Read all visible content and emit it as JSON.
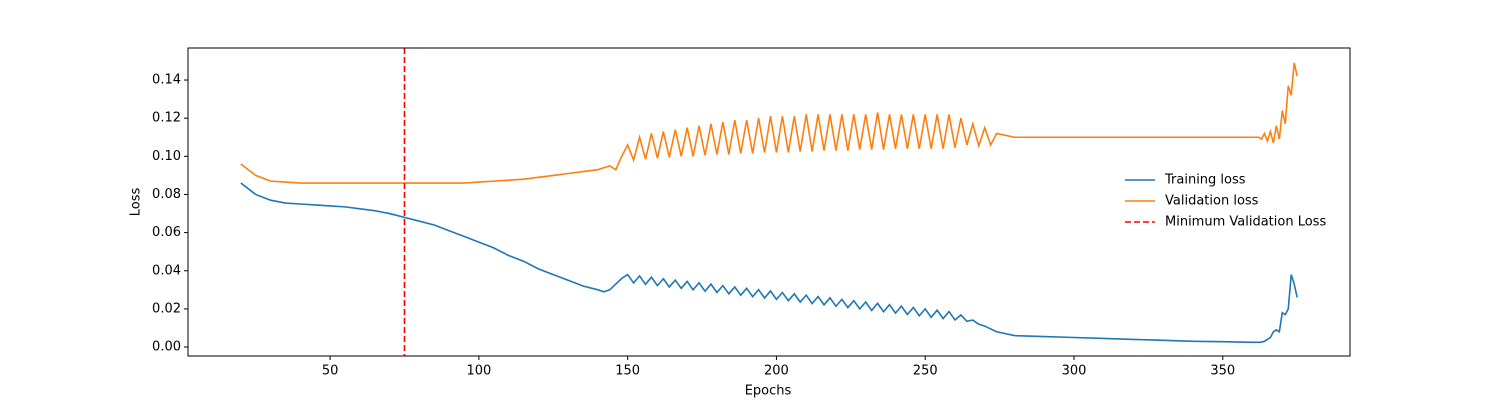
{
  "chart_data": {
    "type": "line",
    "xlabel": "Epochs",
    "ylabel": "Loss",
    "xlim": [
      2.25,
      392.75
    ],
    "ylim": [
      -0.0047,
      0.1568
    ],
    "xticks": [
      50,
      100,
      150,
      200,
      250,
      300,
      350
    ],
    "yticks": [
      {
        "value": 0,
        "label": "0.00"
      },
      {
        "value": 0.02,
        "label": "0.02"
      },
      {
        "value": 0.04,
        "label": "0.04"
      },
      {
        "value": 0.06,
        "label": "0.06"
      },
      {
        "value": 0.08,
        "label": "0.08"
      },
      {
        "value": 0.1,
        "label": "0.10"
      },
      {
        "value": 0.12,
        "label": "0.12"
      },
      {
        "value": 0.14,
        "label": "0.14"
      }
    ],
    "legend": "right",
    "x": [
      20,
      25,
      30,
      35,
      40,
      45,
      50,
      55,
      60,
      65,
      70,
      75,
      80,
      85,
      90,
      95,
      100,
      105,
      110,
      115,
      120,
      125,
      130,
      135,
      140,
      142,
      144,
      146,
      148,
      150,
      152,
      154,
      156,
      158,
      160,
      162,
      164,
      166,
      168,
      170,
      172,
      174,
      176,
      178,
      180,
      182,
      184,
      186,
      188,
      190,
      192,
      194,
      196,
      198,
      200,
      202,
      204,
      206,
      208,
      210,
      212,
      214,
      216,
      218,
      220,
      222,
      224,
      226,
      228,
      230,
      232,
      234,
      236,
      238,
      240,
      242,
      244,
      246,
      248,
      250,
      252,
      254,
      256,
      258,
      260,
      262,
      264,
      266,
      268,
      270,
      272,
      274,
      280,
      290,
      300,
      310,
      320,
      330,
      340,
      350,
      360,
      362,
      363,
      364,
      365,
      366,
      367,
      368,
      369,
      370,
      371,
      372,
      373,
      374,
      375
    ],
    "series": [
      {
        "name": "Training loss",
        "color": "#1f77b4",
        "values": [
          0.086,
          0.08,
          0.077,
          0.0755,
          0.075,
          0.0745,
          0.074,
          0.0735,
          0.0725,
          0.0715,
          0.07,
          0.068,
          0.066,
          0.064,
          0.061,
          0.058,
          0.055,
          0.052,
          0.048,
          0.045,
          0.041,
          0.038,
          0.035,
          0.032,
          0.03,
          0.029,
          0.03,
          0.033,
          0.036,
          0.038,
          0.0336,
          0.0373,
          0.0329,
          0.0366,
          0.0322,
          0.0358,
          0.0315,
          0.0351,
          0.0308,
          0.0344,
          0.03,
          0.0337,
          0.0293,
          0.033,
          0.0286,
          0.0322,
          0.0279,
          0.0315,
          0.0272,
          0.0308,
          0.0264,
          0.0301,
          0.0257,
          0.0294,
          0.025,
          0.0286,
          0.0243,
          0.0279,
          0.0236,
          0.0272,
          0.0228,
          0.0265,
          0.0221,
          0.0258,
          0.0214,
          0.025,
          0.0207,
          0.0243,
          0.02,
          0.0236,
          0.0192,
          0.0229,
          0.0185,
          0.0222,
          0.0178,
          0.0214,
          0.0171,
          0.0207,
          0.0164,
          0.02,
          0.0156,
          0.0193,
          0.0149,
          0.0186,
          0.0142,
          0.0168,
          0.0135,
          0.0141,
          0.012,
          0.011,
          0.0095,
          0.008,
          0.006,
          0.0055,
          0.005,
          0.0045,
          0.004,
          0.0035,
          0.003,
          0.0028,
          0.0025,
          0.0025,
          0.0026,
          0.003,
          0.004,
          0.005,
          0.008,
          0.009,
          0.008,
          0.018,
          0.017,
          0.02,
          0.038,
          0.033,
          0.026
        ]
      },
      {
        "name": "Validation loss",
        "color": "#ff7f0e",
        "values": [
          0.096,
          0.09,
          0.087,
          0.0865,
          0.086,
          0.086,
          0.086,
          0.086,
          0.086,
          0.086,
          0.086,
          0.086,
          0.086,
          0.086,
          0.086,
          0.086,
          0.0865,
          0.087,
          0.0875,
          0.088,
          0.089,
          0.09,
          0.091,
          0.092,
          0.093,
          0.094,
          0.095,
          0.093,
          0.1,
          0.106,
          0.098,
          0.11,
          0.0985,
          0.112,
          0.099,
          0.113,
          0.0995,
          0.114,
          0.1,
          0.115,
          0.1,
          0.116,
          0.1005,
          0.117,
          0.101,
          0.118,
          0.101,
          0.119,
          0.1015,
          0.119,
          0.1015,
          0.12,
          0.102,
          0.121,
          0.102,
          0.121,
          0.102,
          0.121,
          0.1025,
          0.122,
          0.1025,
          0.122,
          0.103,
          0.122,
          0.103,
          0.122,
          0.103,
          0.122,
          0.1035,
          0.122,
          0.1035,
          0.123,
          0.1035,
          0.122,
          0.104,
          0.122,
          0.104,
          0.122,
          0.104,
          0.122,
          0.104,
          0.122,
          0.104,
          0.122,
          0.1045,
          0.12,
          0.106,
          0.117,
          0.1055,
          0.115,
          0.106,
          0.112,
          0.11,
          0.11,
          0.11,
          0.11,
          0.11,
          0.11,
          0.11,
          0.11,
          0.11,
          0.11,
          0.109,
          0.112,
          0.108,
          0.113,
          0.107,
          0.116,
          0.109,
          0.124,
          0.117,
          0.137,
          0.132,
          0.149,
          0.142
        ]
      }
    ],
    "vline": {
      "name": "Minimum Validation Loss",
      "x": 75,
      "color": "#ff0000"
    }
  }
}
